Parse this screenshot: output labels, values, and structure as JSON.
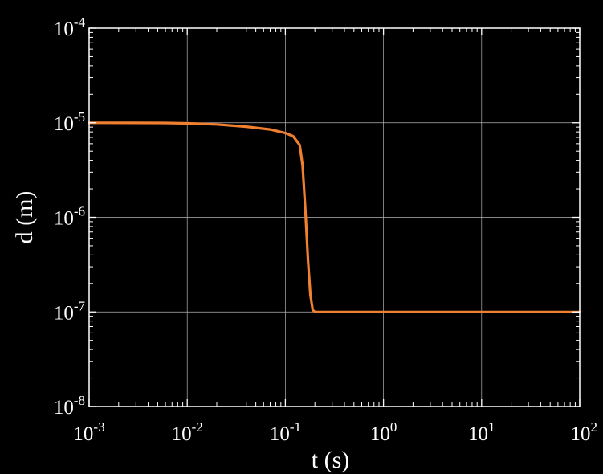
{
  "chart_data": {
    "type": "line",
    "xlabel": "t (s)",
    "ylabel": "d (m)",
    "x_scale": "log",
    "y_scale": "log",
    "xlim": [
      0.001,
      100
    ],
    "ylim": [
      1e-08,
      0.0001
    ],
    "grid": true,
    "legend": "none",
    "x_ticks": [
      {
        "value": 0.001,
        "base": "10",
        "exp": "-3"
      },
      {
        "value": 0.01,
        "base": "10",
        "exp": "-2"
      },
      {
        "value": 0.1,
        "base": "10",
        "exp": "-1"
      },
      {
        "value": 1,
        "base": "10",
        "exp": "0"
      },
      {
        "value": 10,
        "base": "10",
        "exp": "1"
      },
      {
        "value": 100,
        "base": "10",
        "exp": "2"
      }
    ],
    "y_ticks": [
      {
        "value": 1e-08,
        "base": "10",
        "exp": "-8"
      },
      {
        "value": 1e-07,
        "base": "10",
        "exp": "-7"
      },
      {
        "value": 1e-06,
        "base": "10",
        "exp": "-6"
      },
      {
        "value": 1e-05,
        "base": "10",
        "exp": "-5"
      },
      {
        "value": 0.0001,
        "base": "10",
        "exp": "-4"
      }
    ],
    "series": [
      {
        "color": "#f08030",
        "points": [
          [
            0.001,
            1e-05
          ],
          [
            0.003,
            9.98e-06
          ],
          [
            0.006,
            9.95e-06
          ],
          [
            0.01,
            9.85e-06
          ],
          [
            0.02,
            9.6e-06
          ],
          [
            0.04,
            9.1e-06
          ],
          [
            0.07,
            8.5e-06
          ],
          [
            0.1,
            7.8e-06
          ],
          [
            0.12,
            7.2e-06
          ],
          [
            0.14,
            5.8e-06
          ],
          [
            0.15,
            3.5e-06
          ],
          [
            0.16,
            1.2e-06
          ],
          [
            0.17,
            3.5e-07
          ],
          [
            0.18,
            1.5e-07
          ],
          [
            0.19,
            1.05e-07
          ],
          [
            0.2,
            1e-07
          ],
          [
            0.3,
            1e-07
          ],
          [
            1,
            1e-07
          ],
          [
            10,
            1e-07
          ],
          [
            100,
            1e-07
          ]
        ]
      }
    ],
    "colors": {
      "background": "#000000",
      "axes": "#ffffff",
      "grid": "#b4b4b4",
      "line": "#f08030"
    }
  }
}
